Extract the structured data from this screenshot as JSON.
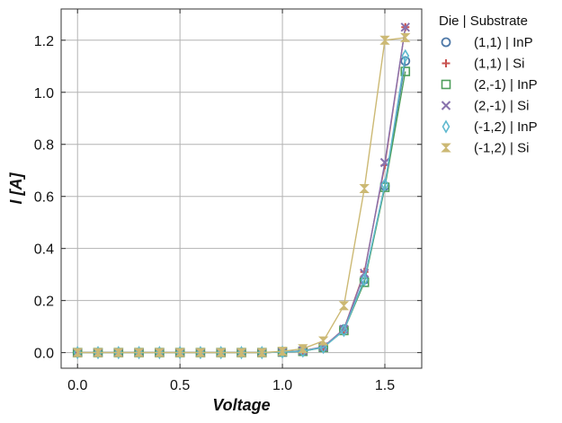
{
  "chart_data": {
    "type": "line",
    "title": "",
    "xlabel": "Voltage",
    "ylabel": "I [A]",
    "xlim": [
      -0.08,
      1.68
    ],
    "ylim": [
      -0.06,
      1.32
    ],
    "x_ticks": [
      0.0,
      0.5,
      1.0,
      1.5
    ],
    "x_tick_labels": [
      "0.0",
      "0.5",
      "1.0",
      "1.5"
    ],
    "y_ticks": [
      0.0,
      0.2,
      0.4,
      0.6,
      0.8,
      1.0,
      1.2
    ],
    "y_tick_labels": [
      "0.0",
      "0.2",
      "0.4",
      "0.6",
      "0.8",
      "1.0",
      "1.2"
    ],
    "grid": true,
    "legend": {
      "title": "Die | Substrate",
      "placement": "outside-top-right"
    },
    "x": [
      0.0,
      0.1,
      0.2,
      0.3,
      0.4,
      0.5,
      0.6,
      0.7,
      0.8,
      0.9,
      1.0,
      1.1,
      1.2,
      1.3,
      1.4,
      1.5,
      1.6
    ],
    "series": [
      {
        "name": "(1,1) | InP",
        "marker": "circle",
        "color": "#4f79a8",
        "values": [
          0,
          0,
          0,
          0,
          0,
          0,
          0,
          0,
          0,
          0,
          0.002,
          0.006,
          0.02,
          0.09,
          0.28,
          0.64,
          1.12
        ]
      },
      {
        "name": "(1,1) | Si",
        "marker": "plus",
        "color": "#c8524f",
        "values": [
          0,
          0,
          0,
          0,
          0,
          0,
          0,
          0,
          0,
          0,
          0.002,
          0.007,
          0.022,
          0.09,
          0.31,
          0.72,
          1.25
        ]
      },
      {
        "name": "(2,-1) | InP",
        "marker": "square",
        "color": "#4e9e5b",
        "values": [
          0,
          0,
          0,
          0,
          0,
          0,
          0,
          0,
          0,
          0,
          0.002,
          0.005,
          0.02,
          0.085,
          0.27,
          0.635,
          1.08
        ]
      },
      {
        "name": "(2,-1) | Si",
        "marker": "x",
        "color": "#8872ad",
        "values": [
          0,
          0,
          0,
          0,
          0,
          0,
          0,
          0,
          0,
          0,
          0.002,
          0.007,
          0.022,
          0.09,
          0.305,
          0.73,
          1.25
        ]
      },
      {
        "name": "(-1,2) | InP",
        "marker": "diamond",
        "color": "#5fb9cf",
        "values": [
          0,
          0,
          0,
          0,
          0,
          0,
          0,
          0,
          0,
          0,
          0.002,
          0.006,
          0.02,
          0.085,
          0.28,
          0.645,
          1.14
        ]
      },
      {
        "name": "(-1,2) | Si",
        "marker": "hourglass",
        "color": "#ccb974",
        "values": [
          0,
          0,
          0,
          0,
          0,
          0,
          0,
          0,
          0,
          0,
          0.005,
          0.015,
          0.045,
          0.18,
          0.63,
          1.2,
          1.21
        ]
      }
    ]
  }
}
